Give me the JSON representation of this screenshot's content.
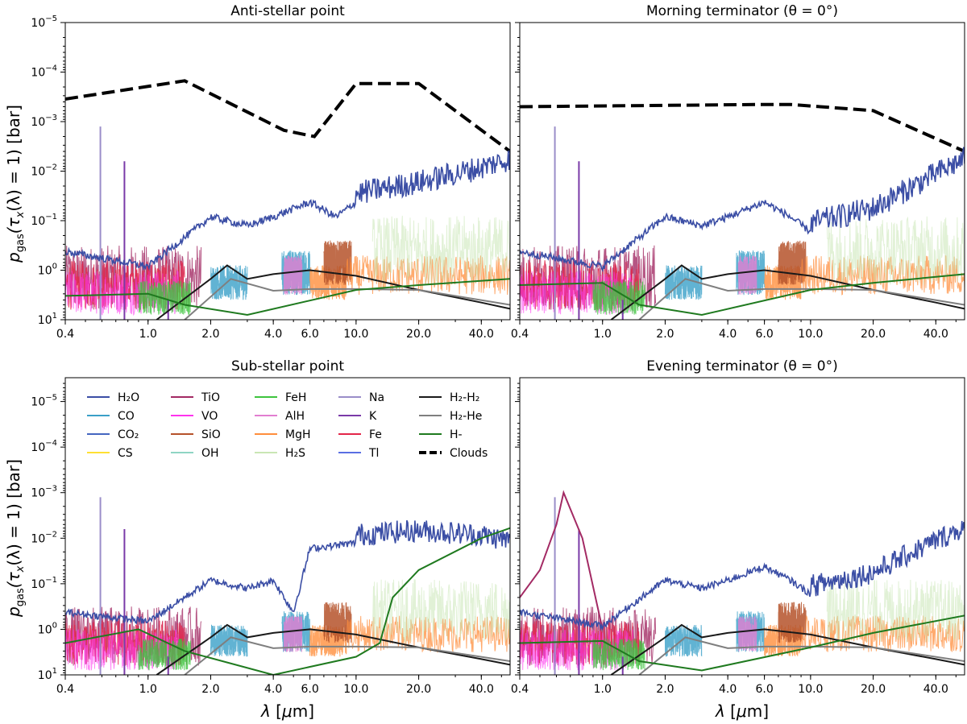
{
  "figure": {
    "ylabel": "p_gas(τ_x(λ) = 1) [bar]",
    "xlabel": "λ [μm]"
  },
  "legend": {
    "placement": "inside top of Sub-stellar point panel",
    "entries": [
      {
        "label": "H₂O",
        "color": "#3b4ea5",
        "style": "solid"
      },
      {
        "label": "CO",
        "color": "#3aa0c8",
        "style": "solid"
      },
      {
        "label": "CO₂",
        "color": "#4466c0",
        "style": "solid"
      },
      {
        "label": "CS",
        "color": "#ffe033",
        "style": "solid"
      },
      {
        "label": "TiO",
        "color": "#a32a64",
        "style": "solid"
      },
      {
        "label": "VO",
        "color": "#ff33ee",
        "style": "solid"
      },
      {
        "label": "SiO",
        "color": "#b5522a",
        "style": "solid"
      },
      {
        "label": "OH",
        "color": "#8fd5c4",
        "style": "solid"
      },
      {
        "label": "FeH",
        "color": "#3ec43e",
        "style": "solid"
      },
      {
        "label": "AlH",
        "color": "#e27ed1",
        "style": "solid"
      },
      {
        "label": "MgH",
        "color": "#ff8e3c",
        "style": "solid"
      },
      {
        "label": "H₂S",
        "color": "#c9e6b4",
        "style": "solid"
      },
      {
        "label": "Na",
        "color": "#9a8ec9",
        "style": "solid"
      },
      {
        "label": "K",
        "color": "#7a3aa8",
        "style": "solid"
      },
      {
        "label": "Fe",
        "color": "#e3264a",
        "style": "solid"
      },
      {
        "label": "Tl",
        "color": "#5a6fe3",
        "style": "solid"
      },
      {
        "label": "H₂-H₂",
        "color": "#1a1a1a",
        "style": "solid"
      },
      {
        "label": "H₂-He",
        "color": "#7f7f7f",
        "style": "solid"
      },
      {
        "label": "H-",
        "color": "#1f7a1f",
        "style": "solid"
      },
      {
        "label": "Clouds",
        "color": "#000000",
        "style": "dashed"
      }
    ]
  },
  "chart_data": [
    {
      "type": "line",
      "title": "Anti-stellar point",
      "xscale": "log",
      "yscale": "log",
      "yinverted": true,
      "xlim": [
        0.4,
        55
      ],
      "ylim": [
        10,
        1e-05
      ],
      "xticks": [
        "0.4",
        "1.0",
        "2.0",
        "4.0",
        "6.0",
        "10.0",
        "20.0",
        "40.0"
      ],
      "yticks": [
        "10^1",
        "10^0",
        "10^-1",
        "10^-2",
        "10^-3",
        "10^-4",
        "10^-5"
      ],
      "series": [
        {
          "name": "Clouds",
          "x": [
            0.4,
            1.5,
            4.5,
            6.3,
            10,
            20,
            55
          ],
          "y": [
            0.00035,
            0.00015,
            0.0015,
            0.002,
            0.00017,
            0.00017,
            0.004
          ]
        },
        {
          "name": "H₂O",
          "x": [
            0.4,
            1,
            2,
            3,
            4,
            6,
            8,
            10,
            20,
            40,
            55
          ],
          "y": [
            0.5,
            1,
            0.1,
            0.15,
            0.1,
            0.05,
            0.1,
            0.05,
            0.03,
            0.015,
            0.01
          ]
        },
        {
          "name": "H₂-H₂",
          "x": [
            1.1,
            2.0,
            2.4,
            3.0,
            4.0,
            6.0,
            10,
            20,
            40,
            55
          ],
          "y": [
            10,
            1.5,
            0.8,
            1.5,
            1.2,
            1.0,
            1.3,
            2.5,
            4.5,
            6
          ]
        },
        {
          "name": "H₂-He",
          "x": [
            1.5,
            2.5,
            4.0,
            6.0,
            10,
            20,
            55
          ],
          "y": [
            10,
            1.5,
            2.6,
            2.4,
            2.4,
            2.5,
            5
          ]
        },
        {
          "name": "H-",
          "x": [
            0.4,
            1.0,
            1.5,
            3.0,
            10,
            20,
            55
          ],
          "y": [
            3.3,
            3.0,
            5,
            8,
            2.5,
            2,
            1.5
          ]
        }
      ]
    },
    {
      "type": "line",
      "title": "Morning terminator (θ = 0°)",
      "xscale": "log",
      "yscale": "log",
      "yinverted": true,
      "xlim": [
        0.4,
        55
      ],
      "ylim": [
        10,
        1e-05
      ],
      "xticks": [
        "0.4",
        "1.0",
        "2.0",
        "4.0",
        "6.0",
        "10.0",
        "20.0",
        "40.0"
      ],
      "yticks": [],
      "series": [
        {
          "name": "Clouds",
          "x": [
            0.4,
            6,
            8,
            20,
            55
          ],
          "y": [
            0.0005,
            0.00045,
            0.00045,
            0.0006,
            0.004
          ]
        },
        {
          "name": "H₂O",
          "x": [
            0.4,
            1,
            2,
            3,
            4,
            6,
            8,
            10,
            20,
            40,
            55
          ],
          "y": [
            0.5,
            1,
            0.1,
            0.15,
            0.1,
            0.05,
            0.1,
            0.2,
            0.1,
            0.02,
            0.01
          ]
        },
        {
          "name": "H₂-H₂",
          "x": [
            1.1,
            2.0,
            2.4,
            3.0,
            4.0,
            6.0,
            10,
            20,
            40,
            55
          ],
          "y": [
            10,
            1.5,
            0.8,
            1.5,
            1.2,
            1.0,
            1.3,
            2.5,
            4.5,
            6
          ]
        },
        {
          "name": "H₂-He",
          "x": [
            1.5,
            2.5,
            4.0,
            6.0,
            10,
            20,
            55
          ],
          "y": [
            10,
            1.5,
            2.6,
            2.4,
            2.4,
            2.5,
            5
          ]
        },
        {
          "name": "H-",
          "x": [
            0.4,
            1.0,
            1.5,
            3.0,
            10,
            20,
            55
          ],
          "y": [
            2.0,
            1.8,
            5,
            8,
            2.5,
            1.8,
            1.2
          ]
        }
      ]
    },
    {
      "type": "line",
      "title": "Sub-stellar point",
      "xscale": "log",
      "yscale": "log",
      "yinverted": true,
      "xlim": [
        0.4,
        55
      ],
      "ylim": [
        10,
        3e-06
      ],
      "xticks": [
        "0.4",
        "1.0",
        "2.0",
        "4.0",
        "6.0",
        "10.0",
        "20.0",
        "40.0"
      ],
      "yticks": [
        "10^1",
        "10^0",
        "10^-1",
        "10^-2",
        "10^-3",
        "10^-4",
        "10^-5"
      ],
      "series": [
        {
          "name": "H₂O",
          "x": [
            0.4,
            1,
            2,
            3,
            4,
            5,
            6,
            10,
            20,
            40,
            55
          ],
          "y": [
            0.5,
            0.8,
            0.1,
            0.15,
            0.1,
            0.5,
            0.02,
            0.015,
            0.012,
            0.015,
            0.02
          ]
        },
        {
          "name": "H₂-H₂",
          "x": [
            1.1,
            2.0,
            2.4,
            3.0,
            4.0,
            6.0,
            10,
            20,
            40,
            55
          ],
          "y": [
            10,
            1.5,
            0.8,
            1.5,
            1.2,
            1.0,
            1.3,
            2.5,
            4.5,
            6
          ]
        },
        {
          "name": "H₂-He",
          "x": [
            1.5,
            2.5,
            4.0,
            6.0,
            10,
            20,
            55
          ],
          "y": [
            10,
            1.5,
            2.6,
            2.4,
            2.4,
            2.5,
            5
          ]
        },
        {
          "name": "H-",
          "x": [
            0.4,
            0.9,
            1.5,
            4.0,
            10,
            13,
            15,
            20,
            40,
            55
          ],
          "y": [
            2.0,
            1.0,
            3,
            10,
            4,
            2,
            0.2,
            0.05,
            0.01,
            0.006
          ]
        }
      ]
    },
    {
      "type": "line",
      "title": "Evening terminator (θ = 0°)",
      "xscale": "log",
      "yscale": "log",
      "yinverted": true,
      "xlim": [
        0.4,
        55
      ],
      "ylim": [
        10,
        3e-06
      ],
      "xticks": [
        "0.4",
        "1.0",
        "2.0",
        "4.0",
        "6.0",
        "10.0",
        "20.0",
        "40.0"
      ],
      "yticks": [],
      "series": [
        {
          "name": "TiO",
          "x": [
            0.4,
            0.5,
            0.6,
            0.65,
            0.8,
            1.0
          ],
          "y": [
            0.2,
            0.05,
            0.005,
            0.001,
            0.01,
            1
          ]
        },
        {
          "name": "H₂O",
          "x": [
            0.4,
            1,
            2,
            3,
            4,
            6,
            8,
            10,
            20,
            40,
            55
          ],
          "y": [
            0.5,
            1,
            0.1,
            0.15,
            0.1,
            0.05,
            0.1,
            0.2,
            0.1,
            0.02,
            0.01
          ]
        },
        {
          "name": "H₂-H₂",
          "x": [
            1.1,
            2.0,
            2.4,
            3.0,
            4.0,
            6.0,
            10,
            20,
            40,
            55
          ],
          "y": [
            10,
            1.5,
            0.8,
            1.5,
            1.2,
            1.0,
            1.3,
            2.5,
            4.5,
            6
          ]
        },
        {
          "name": "H₂-He",
          "x": [
            1.5,
            2.5,
            4.0,
            6.0,
            10,
            20,
            55
          ],
          "y": [
            10,
            1.5,
            2.6,
            2.4,
            2.4,
            2.5,
            5
          ]
        },
        {
          "name": "H-",
          "x": [
            0.4,
            1.0,
            1.5,
            3.0,
            10,
            20,
            55
          ],
          "y": [
            2.0,
            1.8,
            5,
            8,
            2.5,
            1.2,
            0.5
          ]
        }
      ]
    }
  ]
}
